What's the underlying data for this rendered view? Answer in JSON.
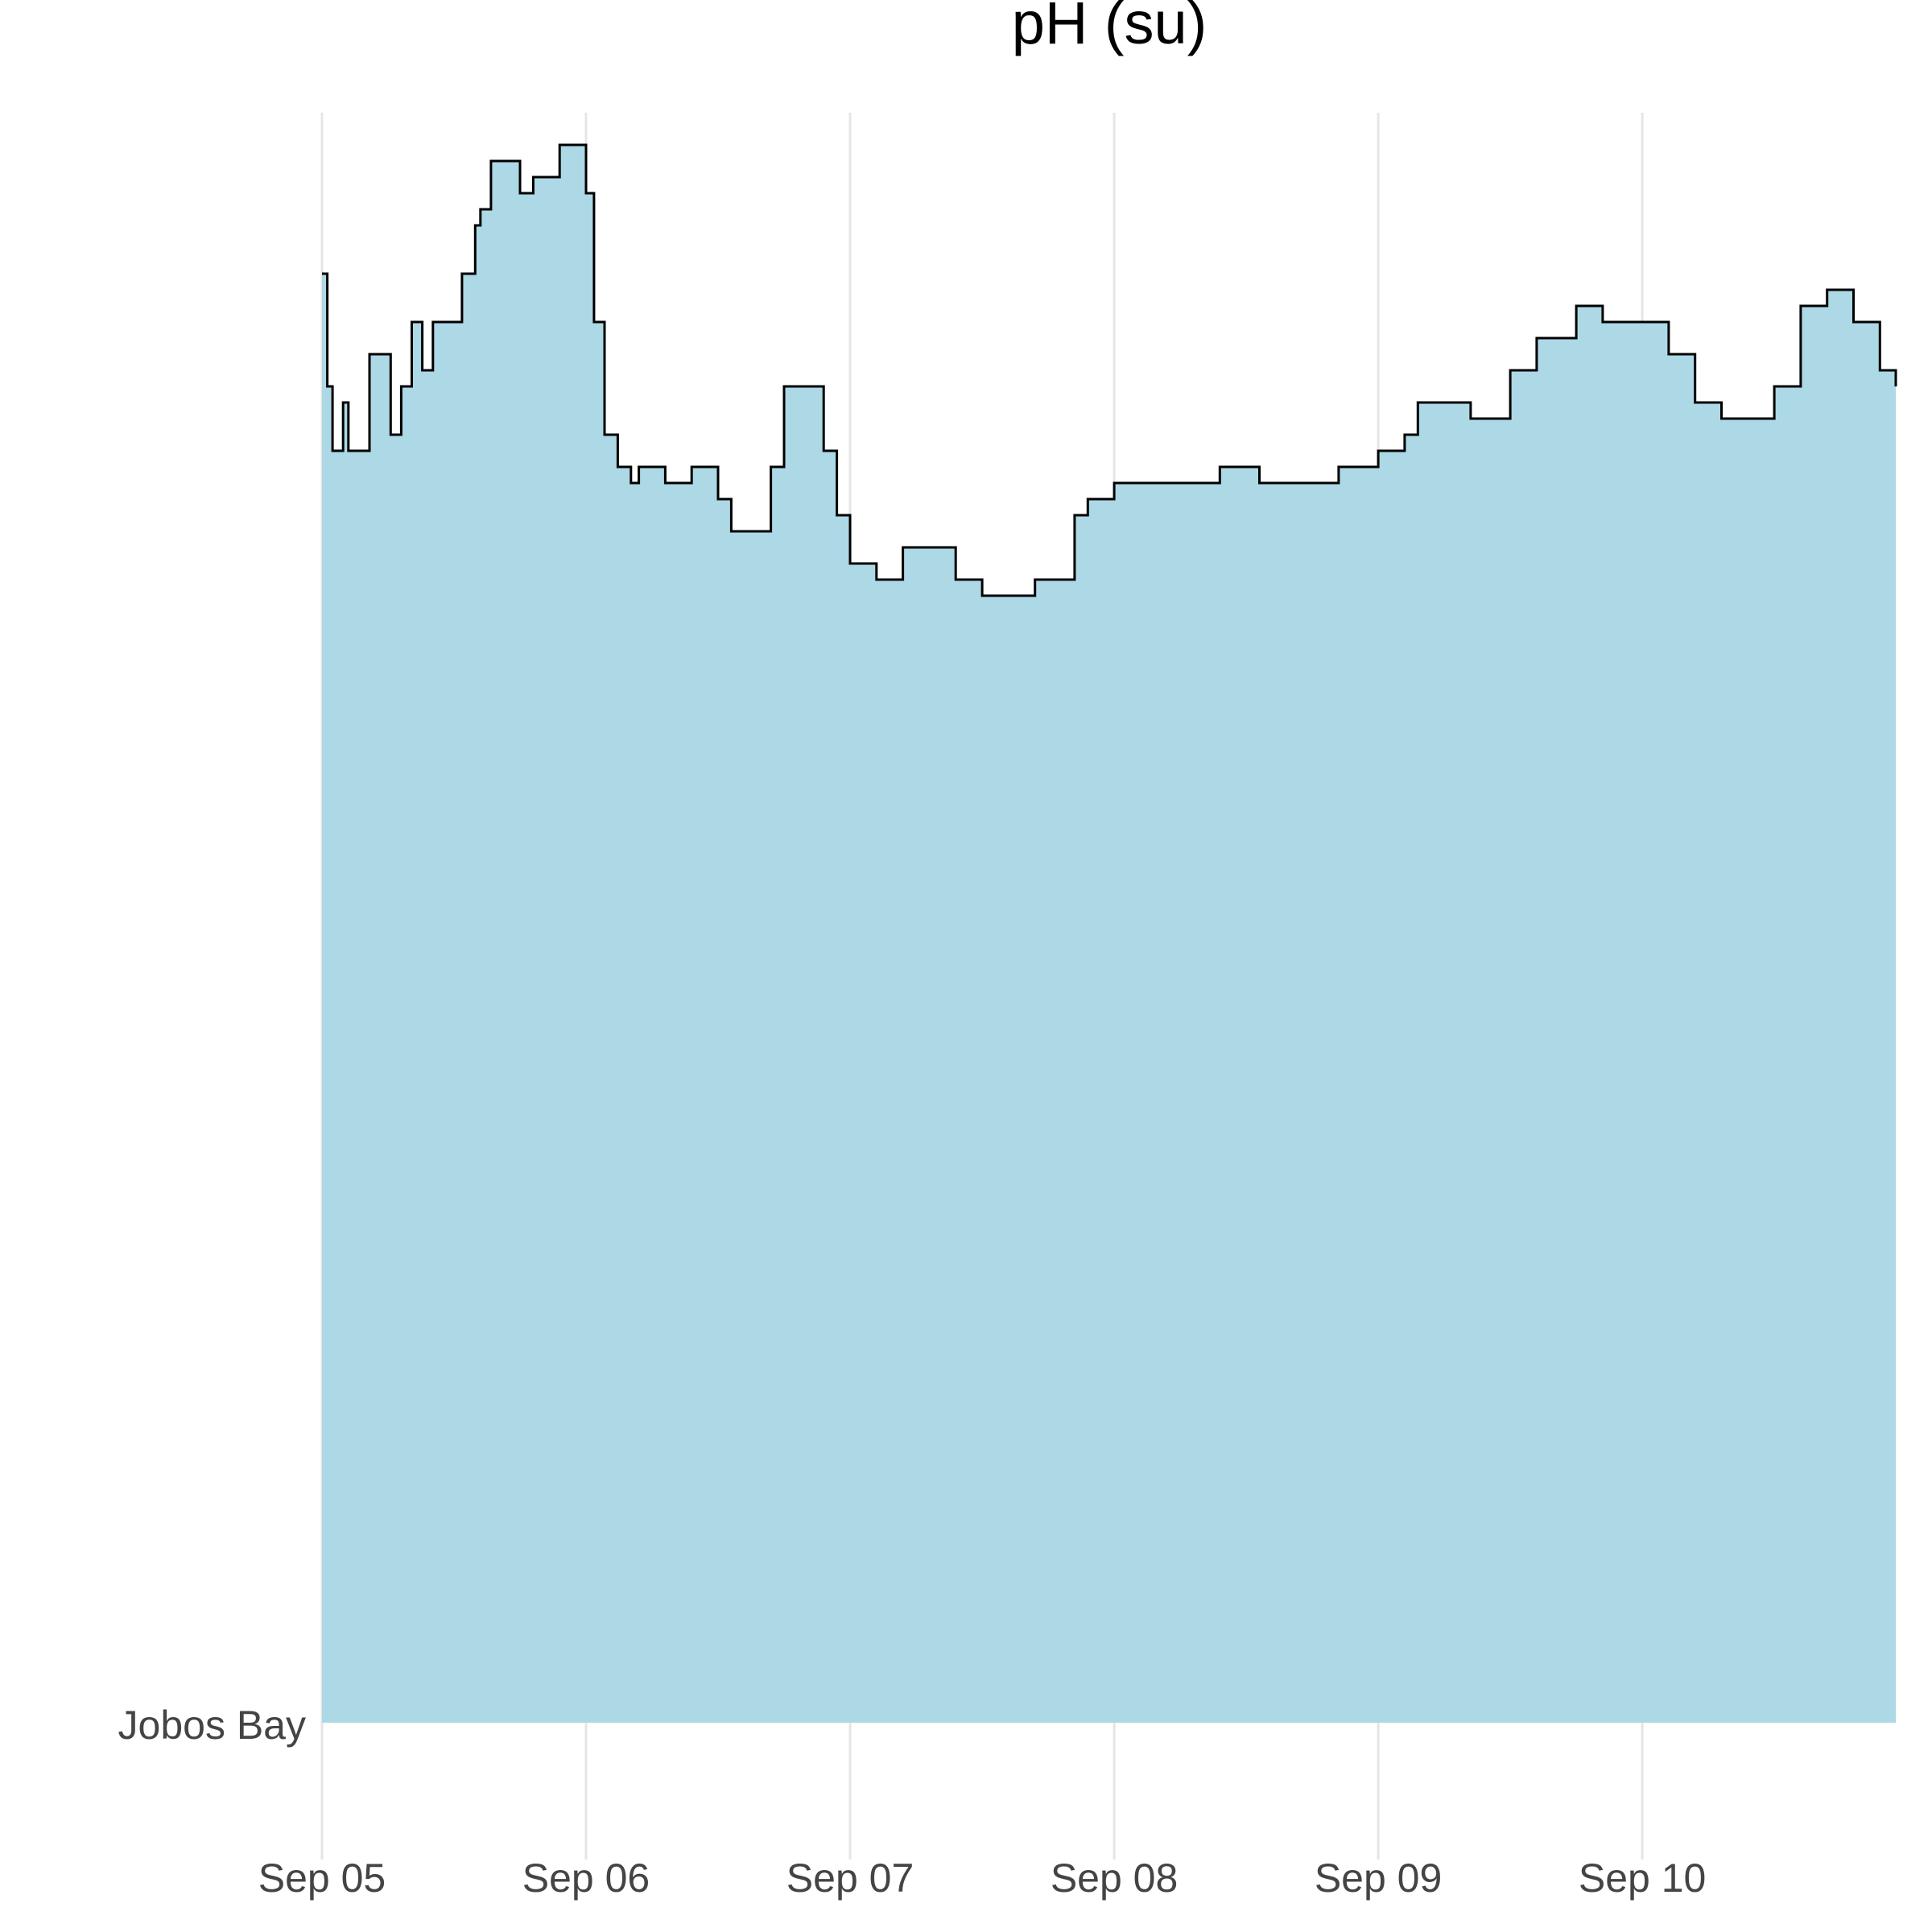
{
  "chart_data": {
    "type": "area",
    "title": "pH (su)",
    "xlabel": "",
    "ylabel": "",
    "category_label": "Jobos Bay",
    "x_ticks": [
      "Sep 05",
      "Sep 06",
      "Sep 07",
      "Sep 08",
      "Sep 09",
      "Sep 10"
    ],
    "x_range_days": [
      0,
      5.96
    ],
    "grid": true,
    "fill_color": "#add8e6",
    "line_color": "#000000",
    "grid_color": "#e5e5e5",
    "series": [
      {
        "values": [
          [
            0.0,
            0.9
          ],
          [
            0.02,
            0.83
          ],
          [
            0.04,
            0.79
          ],
          [
            0.08,
            0.82
          ],
          [
            0.1,
            0.79
          ],
          [
            0.15,
            0.79
          ],
          [
            0.18,
            0.85
          ],
          [
            0.22,
            0.85
          ],
          [
            0.26,
            0.8
          ],
          [
            0.3,
            0.83
          ],
          [
            0.34,
            0.87
          ],
          [
            0.38,
            0.84
          ],
          [
            0.42,
            0.87
          ],
          [
            0.5,
            0.87
          ],
          [
            0.53,
            0.9
          ],
          [
            0.58,
            0.93
          ],
          [
            0.6,
            0.94
          ],
          [
            0.64,
            0.97
          ],
          [
            0.7,
            0.97
          ],
          [
            0.75,
            0.95
          ],
          [
            0.8,
            0.96
          ],
          [
            0.9,
            0.98
          ],
          [
            0.95,
            0.98
          ],
          [
            1.0,
            0.95
          ],
          [
            1.03,
            0.87
          ],
          [
            1.07,
            0.8
          ],
          [
            1.12,
            0.78
          ],
          [
            1.17,
            0.77
          ],
          [
            1.2,
            0.78
          ],
          [
            1.3,
            0.77
          ],
          [
            1.4,
            0.78
          ],
          [
            1.5,
            0.76
          ],
          [
            1.55,
            0.74
          ],
          [
            1.6,
            0.74
          ],
          [
            1.7,
            0.78
          ],
          [
            1.75,
            0.83
          ],
          [
            1.8,
            0.83
          ],
          [
            1.9,
            0.79
          ],
          [
            1.95,
            0.75
          ],
          [
            2.0,
            0.72
          ],
          [
            2.05,
            0.72
          ],
          [
            2.1,
            0.71
          ],
          [
            2.2,
            0.73
          ],
          [
            2.3,
            0.73
          ],
          [
            2.4,
            0.71
          ],
          [
            2.5,
            0.7
          ],
          [
            2.6,
            0.7
          ],
          [
            2.7,
            0.71
          ],
          [
            2.8,
            0.71
          ],
          [
            2.85,
            0.75
          ],
          [
            2.9,
            0.76
          ],
          [
            3.0,
            0.77
          ],
          [
            3.2,
            0.77
          ],
          [
            3.4,
            0.78
          ],
          [
            3.55,
            0.77
          ],
          [
            3.7,
            0.77
          ],
          [
            3.85,
            0.78
          ],
          [
            4.0,
            0.79
          ],
          [
            4.1,
            0.8
          ],
          [
            4.15,
            0.82
          ],
          [
            4.25,
            0.82
          ],
          [
            4.35,
            0.81
          ],
          [
            4.5,
            0.84
          ],
          [
            4.6,
            0.86
          ],
          [
            4.75,
            0.88
          ],
          [
            4.85,
            0.87
          ],
          [
            5.0,
            0.87
          ],
          [
            5.1,
            0.85
          ],
          [
            5.2,
            0.82
          ],
          [
            5.3,
            0.81
          ],
          [
            5.4,
            0.81
          ],
          [
            5.5,
            0.83
          ],
          [
            5.6,
            0.88
          ],
          [
            5.7,
            0.89
          ],
          [
            5.8,
            0.87
          ],
          [
            5.9,
            0.84
          ],
          [
            5.96,
            0.83
          ]
        ]
      }
    ]
  }
}
